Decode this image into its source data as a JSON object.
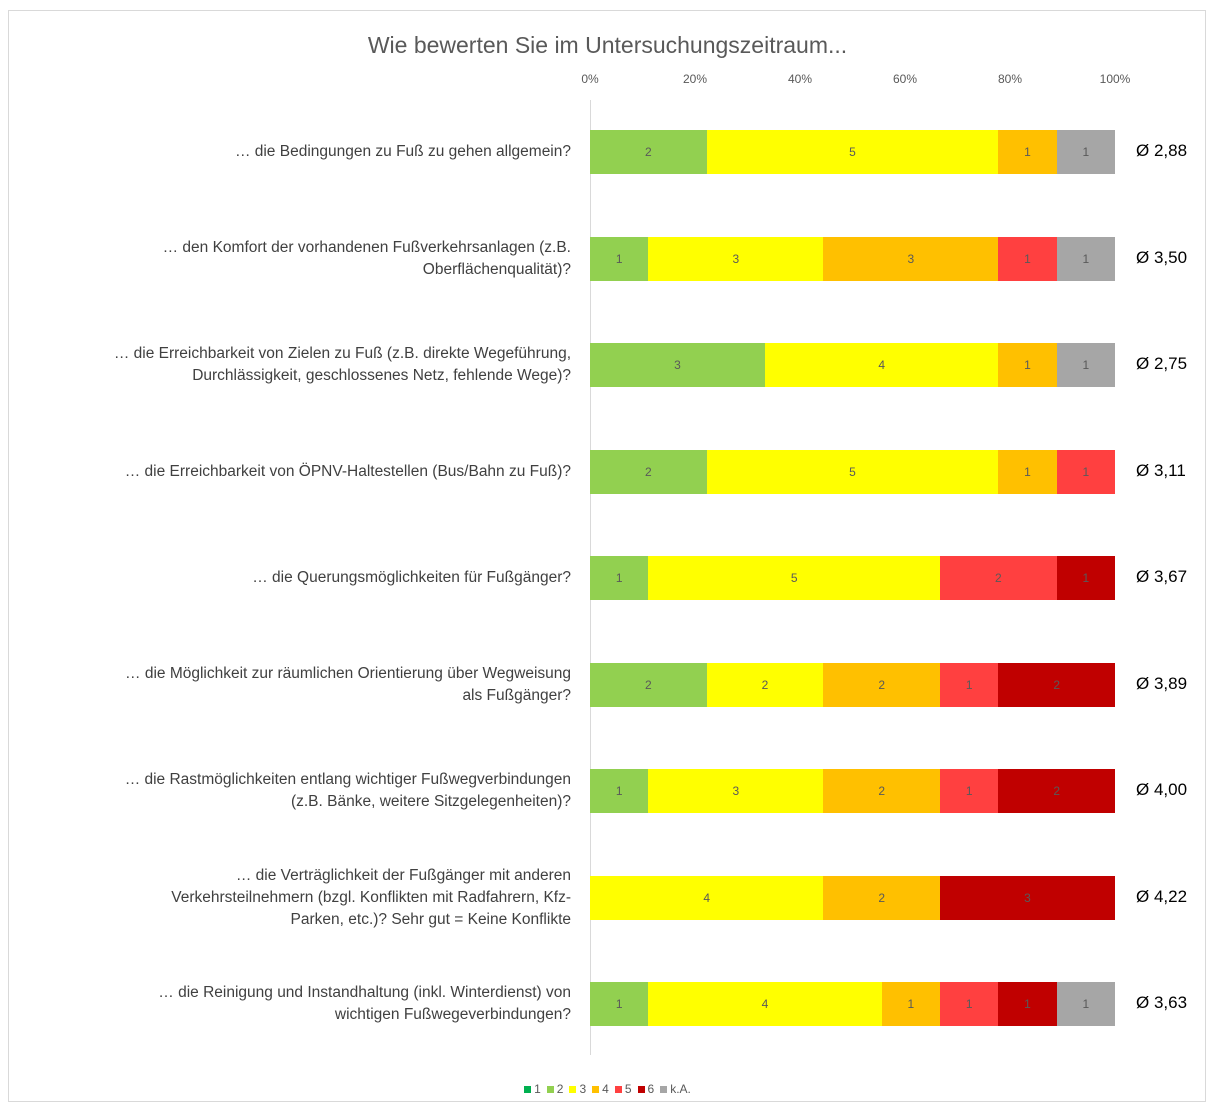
{
  "chart_data": {
    "type": "bar",
    "orientation": "horizontal",
    "stacked": "percent",
    "title": "Wie bewerten Sie im Untersuchungszeitraum...",
    "x_ticks": [
      "0%",
      "20%",
      "40%",
      "60%",
      "80%",
      "100%"
    ],
    "xlim": [
      0,
      100
    ],
    "legend_position": "bottom",
    "series": [
      {
        "name": "1",
        "color": "#00b050"
      },
      {
        "name": "2",
        "color": "#92d050"
      },
      {
        "name": "3",
        "color": "#ffff00"
      },
      {
        "name": "4",
        "color": "#ffc000"
      },
      {
        "name": "5",
        "color": "#ff4040"
      },
      {
        "name": "6",
        "color": "#c00000"
      },
      {
        "name": "k.A.",
        "color": "#a6a6a6"
      }
    ],
    "categories": [
      {
        "label": "… die Bedingungen zu Fuß zu gehen allgemein?",
        "counts": [
          0,
          2,
          5,
          1,
          0,
          0,
          1
        ],
        "average": "Ø 2,88"
      },
      {
        "label": "… den Komfort der vorhandenen Fußverkehrsanlagen (z.B.\nOberflächenqualität)?",
        "counts": [
          0,
          1,
          3,
          3,
          1,
          0,
          1
        ],
        "average": "Ø 3,50"
      },
      {
        "label": "… die Erreichbarkeit von Zielen zu Fuß (z.B. direkte Wegeführung,\nDurchlässigkeit, geschlossenes Netz, fehlende Wege)?",
        "counts": [
          0,
          3,
          4,
          1,
          0,
          0,
          1
        ],
        "average": "Ø 2,75"
      },
      {
        "label": "… die Erreichbarkeit von ÖPNV-Haltestellen (Bus/Bahn zu Fuß)?",
        "counts": [
          0,
          2,
          5,
          1,
          1,
          0,
          0
        ],
        "average": "Ø 3,11"
      },
      {
        "label": "… die Querungsmöglichkeiten für Fußgänger?",
        "counts": [
          0,
          1,
          5,
          0,
          2,
          1,
          0
        ],
        "average": "Ø 3,67"
      },
      {
        "label": "… die Möglichkeit zur räumlichen Orientierung über Wegweisung\nals Fußgänger?",
        "counts": [
          0,
          2,
          2,
          2,
          1,
          2,
          0
        ],
        "average": "Ø 3,89"
      },
      {
        "label": "… die Rastmöglichkeiten entlang wichtiger Fußwegverbindungen\n(z.B. Bänke, weitere Sitzgelegenheiten)?",
        "counts": [
          0,
          1,
          3,
          2,
          1,
          2,
          0
        ],
        "average": "Ø 4,00"
      },
      {
        "label": "… die Verträglichkeit der Fußgänger mit anderen\nVerkehrsteilnehmern (bzgl. Konflikten mit Radfahrern, Kfz-\nParken, etc.)? Sehr gut = Keine Konflikte",
        "counts": [
          0,
          0,
          4,
          2,
          0,
          3,
          0
        ],
        "average": "Ø 4,22"
      },
      {
        "label": "… die Reinigung und Instandhaltung (inkl. Winterdienst) von\nwichtigen Fußwegeverbindungen?",
        "counts": [
          0,
          1,
          4,
          1,
          1,
          1,
          1
        ],
        "average": "Ø 3,63"
      }
    ]
  }
}
